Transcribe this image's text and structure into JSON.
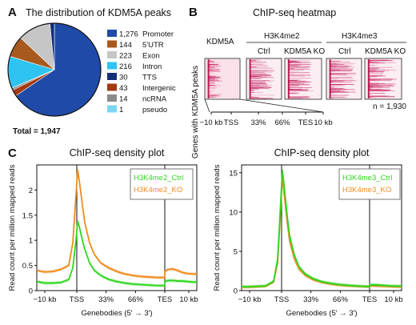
{
  "panels": [
    {
      "letter": "A"
    },
    {
      "letter": "B"
    },
    {
      "letter": "C"
    }
  ],
  "panel_a": {
    "title": "The distribution of KDM5A peaks",
    "total_label": "Total = 1,947"
  },
  "panel_b": {
    "title": "ChIP-seq heatmap",
    "col_kdm5a": "KDM5A",
    "group_h3k4me2": "H3K4me2",
    "group_h3k4me3": "H3K4me3",
    "sub_ctrl": "Ctrl",
    "sub_ko": "KDM5A KO",
    "y_label": "Genes with KDM5A peaks",
    "n_label": "n = 1,930",
    "axis_ticks": [
      "−10 kb",
      "TSS",
      "33%",
      "66%",
      "TES",
      "10 kb"
    ]
  },
  "panel_c": {
    "ylabel": "Read count per million mapped reads",
    "xlabel": "Genebodies (5′ → 3′)"
  },
  "chart_data": [
    {
      "type": "pie",
      "title": "The distribution of KDM5A peaks",
      "categories": [
        "Promoter",
        "5'UTR",
        "Exon",
        "Intron",
        "TTS",
        "Intergenic",
        "ncRNA",
        "pseudo"
      ],
      "values": [
        1276,
        144,
        223,
        216,
        30,
        43,
        14,
        1
      ],
      "labels": [
        "1,276",
        "144",
        "223",
        "216",
        "30",
        "43",
        "14",
        "1"
      ],
      "colors": [
        "#1f4aa8",
        "#a85a1e",
        "#c6c6c6",
        "#2ec3f0",
        "#132f78",
        "#a33a0f",
        "#8a8a8a",
        "#7fd4f5"
      ],
      "annotation": "Total = 1,947",
      "legend_position": "right"
    },
    {
      "type": "line",
      "title": "ChIP-seq density plot",
      "xlabel": "Genebodies (5′ → 3′)",
      "ylabel": "Read count per million mapped reads",
      "x_ticks": [
        "−10 kb",
        "TSS",
        "33%",
        "66%",
        "TES",
        "10 kb"
      ],
      "ylim": [
        0,
        2.5
      ],
      "y_ticks": [
        0,
        0.5,
        1,
        1.5,
        2
      ],
      "legend_position": "top-right",
      "x": [
        0,
        0.05,
        0.1,
        0.15,
        0.2,
        0.225,
        0.245,
        0.255,
        0.265,
        0.285,
        0.3,
        0.33,
        0.36,
        0.4,
        0.45,
        0.5,
        0.55,
        0.6,
        0.65,
        0.7,
        0.75,
        0.78,
        0.8,
        0.8001,
        0.82,
        0.85,
        0.88,
        0.91,
        0.94,
        0.97,
        1.0
      ],
      "series": [
        {
          "name": "H3K4me2_Ctrl",
          "color": "#2fd61f",
          "values": [
            0.18,
            0.15,
            0.15,
            0.16,
            0.22,
            0.45,
            1.0,
            1.38,
            1.28,
            1.0,
            0.82,
            0.55,
            0.4,
            0.3,
            0.22,
            0.18,
            0.15,
            0.13,
            0.12,
            0.11,
            0.1,
            0.1,
            0.1,
            0.18,
            0.2,
            0.2,
            0.19,
            0.19,
            0.18,
            0.17,
            0.17
          ]
        },
        {
          "name": "H3K4me2_KO",
          "color": "#f08a1e",
          "values": [
            0.4,
            0.37,
            0.38,
            0.42,
            0.5,
            0.95,
            1.9,
            2.4,
            2.2,
            1.7,
            1.35,
            0.95,
            0.72,
            0.55,
            0.45,
            0.38,
            0.33,
            0.3,
            0.28,
            0.27,
            0.26,
            0.26,
            0.26,
            0.38,
            0.42,
            0.43,
            0.4,
            0.36,
            0.34,
            0.33,
            0.33
          ]
        }
      ]
    },
    {
      "type": "line",
      "title": "ChIP-seq density plot",
      "xlabel": "Genebodies (5′ → 3′)",
      "ylabel": "Read count per million mapped reads",
      "x_ticks": [
        "−10 kb",
        "TSS",
        "33%",
        "66%",
        "TES",
        "10 kb"
      ],
      "ylim": [
        0,
        16
      ],
      "y_ticks": [
        0,
        5,
        10,
        15
      ],
      "legend_position": "top-right",
      "x": [
        0,
        0.05,
        0.1,
        0.15,
        0.2,
        0.225,
        0.245,
        0.255,
        0.265,
        0.285,
        0.3,
        0.33,
        0.36,
        0.4,
        0.45,
        0.5,
        0.55,
        0.6,
        0.65,
        0.7,
        0.75,
        0.78,
        0.8,
        0.8001,
        0.82,
        0.85,
        0.88,
        0.91,
        0.94,
        0.97,
        1.0
      ],
      "series": [
        {
          "name": "H3K4me3_Ctrl",
          "color": "#2fd61f",
          "values": [
            0.5,
            0.5,
            0.55,
            0.6,
            1.2,
            4.0,
            11.5,
            15.3,
            13.5,
            9.5,
            7.0,
            4.5,
            3.0,
            2.1,
            1.5,
            1.15,
            0.95,
            0.8,
            0.7,
            0.62,
            0.56,
            0.54,
            0.52,
            0.7,
            0.75,
            0.72,
            0.68,
            0.64,
            0.6,
            0.58,
            0.57
          ]
        },
        {
          "name": "H3K4me3_KO",
          "color": "#f08a1e",
          "values": [
            0.45,
            0.45,
            0.5,
            0.55,
            1.1,
            3.5,
            10.5,
            14.6,
            12.5,
            8.7,
            6.3,
            4.0,
            2.7,
            1.9,
            1.35,
            1.05,
            0.85,
            0.72,
            0.63,
            0.57,
            0.52,
            0.5,
            0.48,
            0.6,
            0.62,
            0.58,
            0.55,
            0.52,
            0.5,
            0.48,
            0.47
          ]
        }
      ]
    }
  ]
}
